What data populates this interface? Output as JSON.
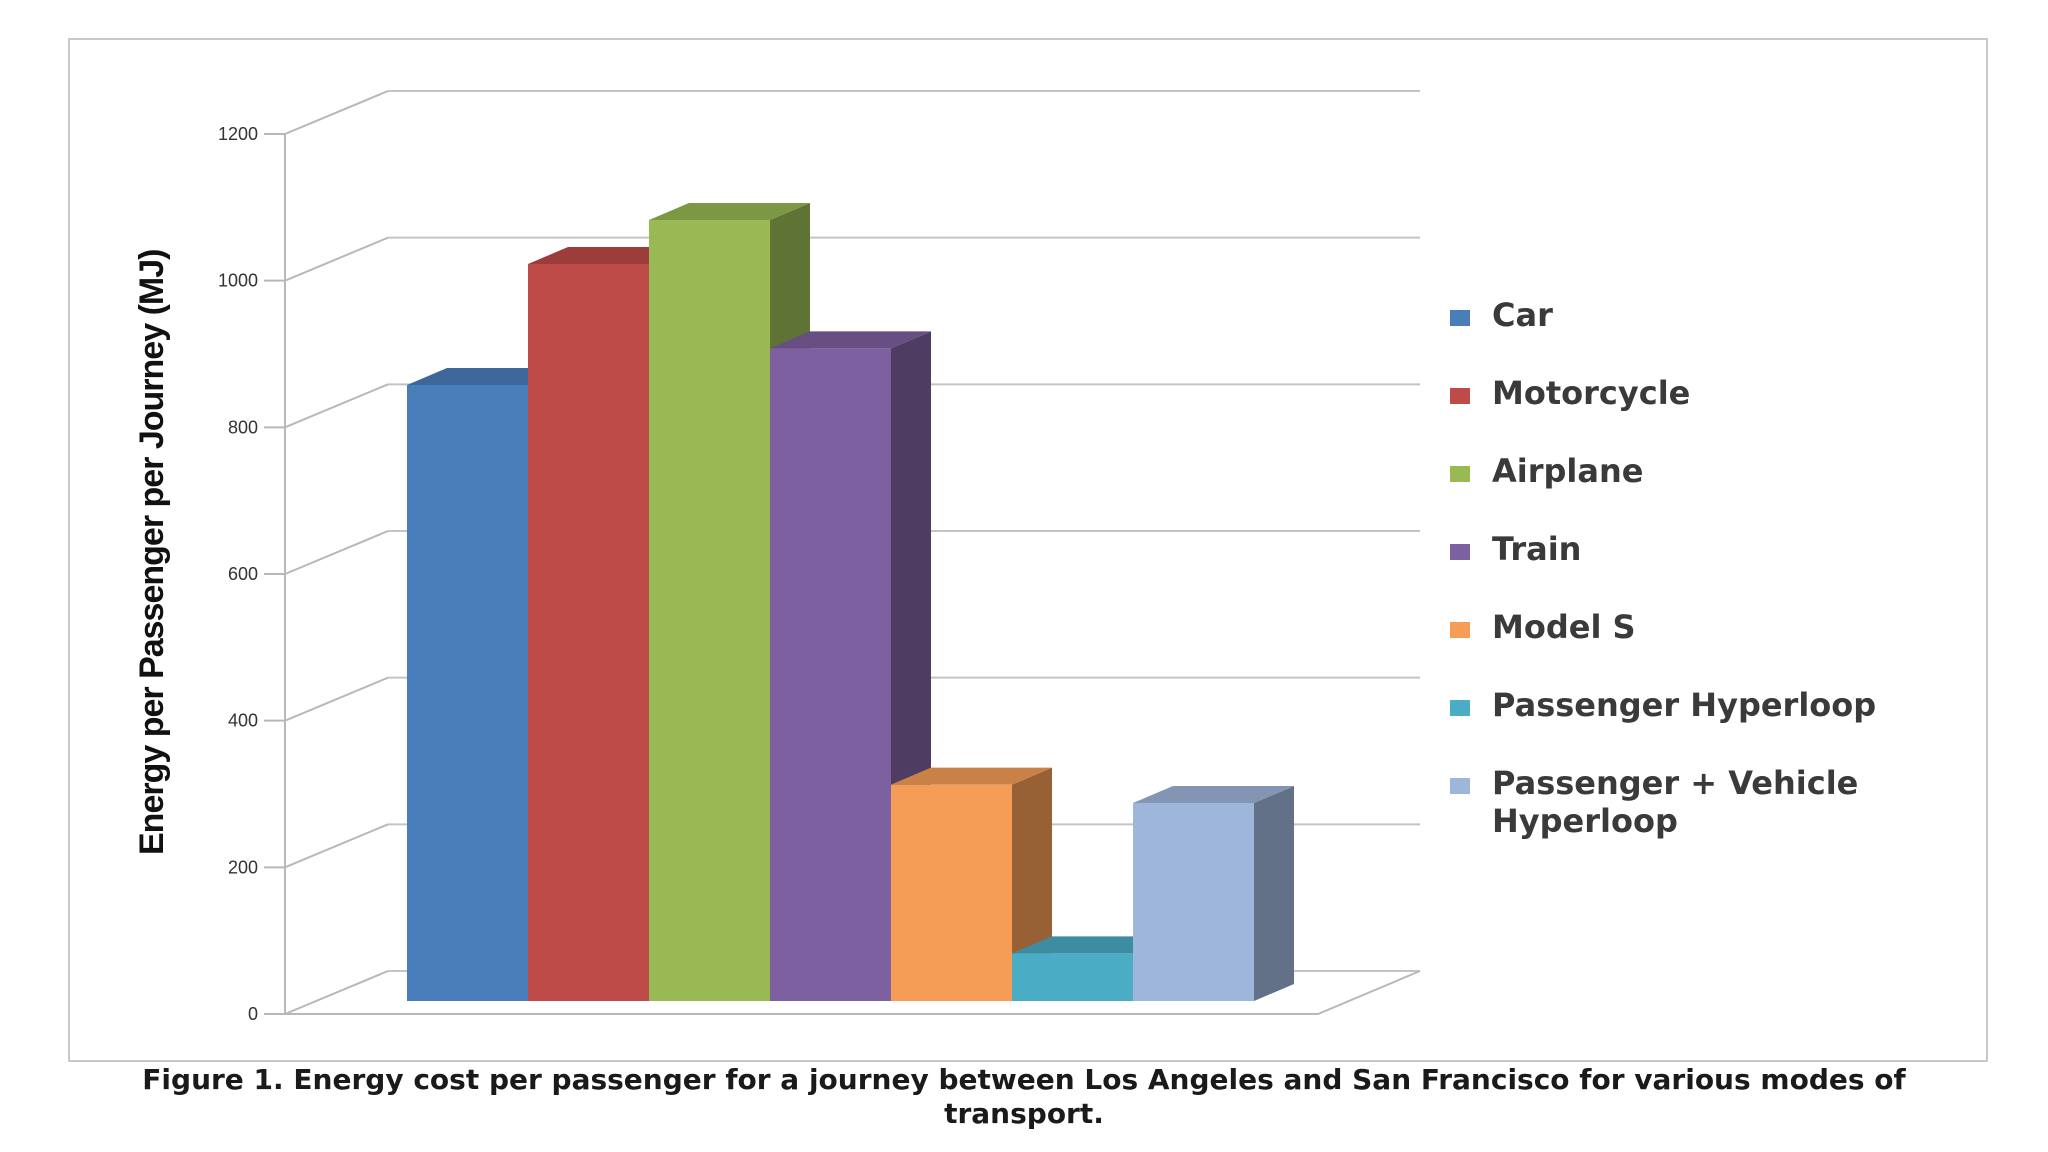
{
  "chart_data": {
    "type": "bar",
    "categories": [
      "Car",
      "Motorcycle",
      "Airplane",
      "Train",
      "Model S",
      "Passenger Hyperloop",
      "Passenger + Vehicle Hyperloop"
    ],
    "values": [
      840,
      1005,
      1065,
      890,
      295,
      65,
      270
    ],
    "colors": [
      "#4a7ebb",
      "#be4b48",
      "#98b954",
      "#7d60a0",
      "#f59d56",
      "#4bacc6",
      "#9eb6d9"
    ],
    "ylabel": "Energy per Passenger per Journey (MJ)",
    "ylim": [
      0,
      1200
    ],
    "yticks": [
      0,
      200,
      400,
      600,
      800,
      1000,
      1200
    ],
    "grid": true,
    "style": "3d-column",
    "legend_position": "right",
    "legend": [
      "Car",
      "Motorcycle",
      "Airplane",
      "Train",
      "Model S",
      "Passenger Hyperloop",
      "Passenger + Vehicle Hyperloop"
    ],
    "caption": "Figure 1. Energy cost per passenger for a journey between Los Angeles and San Francisco for various modes of transport."
  }
}
